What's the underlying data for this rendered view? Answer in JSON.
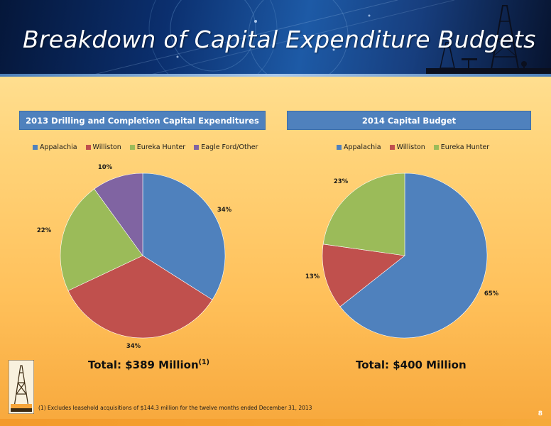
{
  "title": "Breakdown of Capital Expenditure Budgets",
  "chart_data": [
    {
      "type": "pie",
      "title": "2013 Drilling and Completion Capital Expenditures",
      "categories": [
        "Appalachia",
        "Williston",
        "Eureka Hunter",
        "Eagle Ford/Other"
      ],
      "values": [
        34,
        34,
        22,
        10
      ],
      "labels": [
        "34%",
        "34%",
        "22%",
        "10%"
      ],
      "colors": [
        "#4f81bd",
        "#c0504d",
        "#9bbb59",
        "#8064a2"
      ],
      "legend_position": "top",
      "total_text": "Total: $389 Million",
      "total_footnote_marker": "(1)"
    },
    {
      "type": "pie",
      "title": "2014 Capital Budget",
      "categories": [
        "Appalachia",
        "Williston",
        "Eureka Hunter"
      ],
      "values": [
        65,
        13,
        23
      ],
      "labels": [
        "65%",
        "13%",
        "23%"
      ],
      "colors": [
        "#4f81bd",
        "#c0504d",
        "#9bbb59"
      ],
      "legend_position": "top",
      "total_text": "Total: $400 Million"
    }
  ],
  "footnote": "(1) Excludes leasehold acquisitions of $144.3 million for the twelve months ended December 31, 2013",
  "page_number": "8",
  "icons": {
    "banner_art": "oil-derrick-silhouette",
    "logo": "oil-derrick-logo-icon"
  }
}
